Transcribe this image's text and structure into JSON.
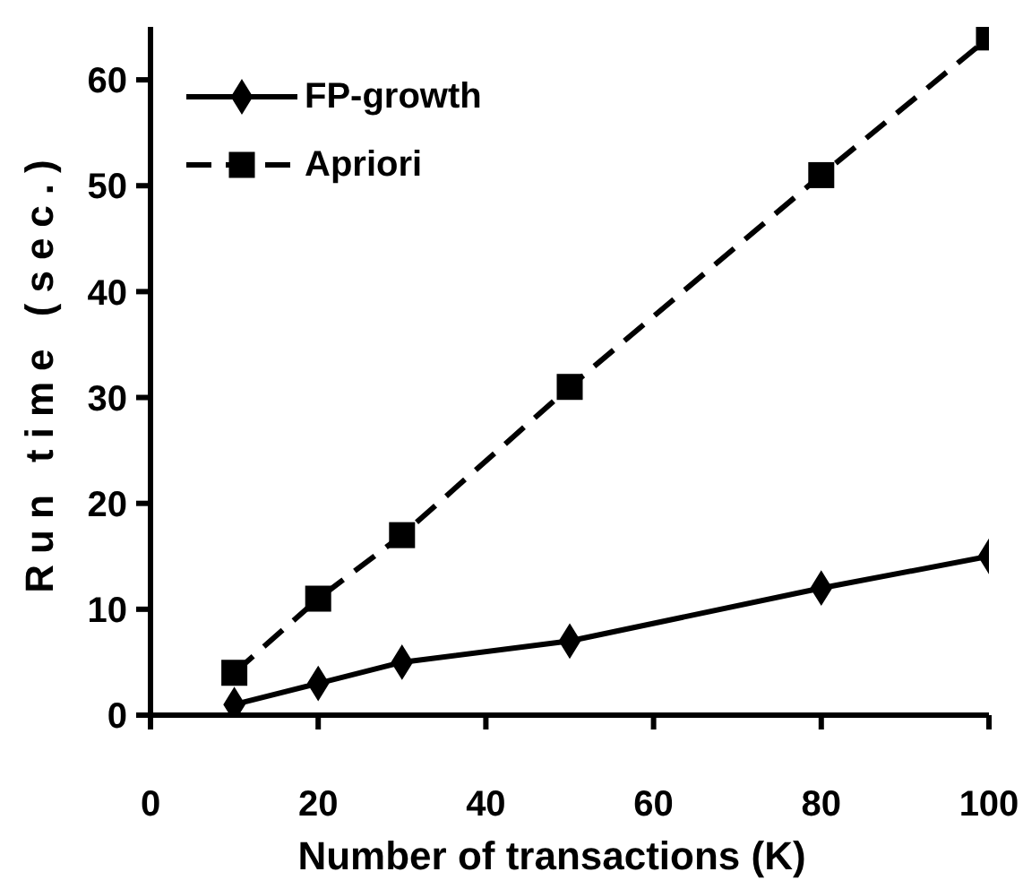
{
  "chart_data": {
    "type": "line",
    "xlabel": "Number of transactions (K)",
    "ylabel": "Run time (sec.)",
    "x": [
      10,
      20,
      30,
      50,
      80,
      100
    ],
    "xlim": [
      0,
      100
    ],
    "xticks": [
      0,
      20,
      40,
      60,
      80,
      100
    ],
    "ylim": [
      0,
      65
    ],
    "yticks": [
      0,
      10,
      20,
      30,
      40,
      50,
      60
    ],
    "grid": false,
    "legend": "top left",
    "series": [
      {
        "name": "FP-growth",
        "color": "#000000",
        "values": [
          1,
          3,
          5,
          7,
          12,
          15
        ],
        "marker": "diamond",
        "line_style": "solid"
      },
      {
        "name": "Apriori",
        "color": "#000000",
        "values": [
          4,
          11,
          17,
          31,
          51,
          64
        ],
        "marker": "square",
        "line_style": "dashed"
      }
    ]
  }
}
